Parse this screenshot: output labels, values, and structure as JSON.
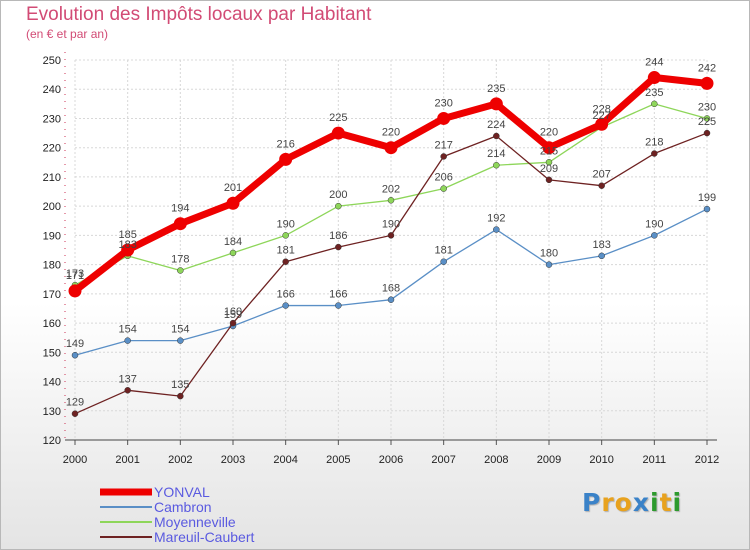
{
  "title": "Evolution des Impôts locaux par Habitant",
  "subtitle": "(en € et par an)",
  "logo": {
    "letters": [
      "P",
      "r",
      "o",
      "x",
      "i",
      "t",
      "i"
    ],
    "colors": [
      "#3a82c8",
      "#e8a21e",
      "#e8a21e",
      "#3a82c8",
      "#2d9a2d",
      "#e8a21e",
      "#2d9a2d"
    ]
  },
  "chart_data": {
    "type": "line",
    "title": "Evolution des Impôts locaux par Habitant",
    "subtitle": "(en € et par an)",
    "xlabel": "",
    "ylabel": "",
    "categories": [
      "2000",
      "2001",
      "2002",
      "2003",
      "2004",
      "2005",
      "2006",
      "2007",
      "2008",
      "2009",
      "2010",
      "2011",
      "2012"
    ],
    "ylim": [
      120,
      250
    ],
    "yticks": [
      120,
      130,
      140,
      150,
      160,
      170,
      180,
      190,
      200,
      210,
      220,
      230,
      240,
      250
    ],
    "grid": true,
    "legend_position": "bottom-left",
    "series": [
      {
        "name": "YONVAL",
        "color": "#ee0000",
        "emphasis": true,
        "values": [
          171,
          185,
          194,
          201,
          216,
          225,
          220,
          230,
          235,
          220,
          228,
          244,
          242
        ],
        "labels": [
          "171",
          "185",
          "194",
          "201",
          "216",
          "225",
          "220",
          "230",
          "235",
          "220",
          "228",
          "244",
          "242"
        ]
      },
      {
        "name": "Cambron",
        "color": "#5a8fc6",
        "emphasis": false,
        "values": [
          149,
          154,
          154,
          159,
          166,
          166,
          168,
          181,
          192,
          180,
          183,
          190,
          199
        ],
        "labels": [
          "149",
          "154",
          "154",
          "159",
          "166",
          "166",
          "168",
          "181",
          "192",
          "180",
          "183",
          "190",
          "199"
        ]
      },
      {
        "name": "Moyenneville",
        "color": "#8ed65a",
        "emphasis": false,
        "values": [
          173,
          183,
          178,
          184,
          190,
          200,
          202,
          206,
          214,
          215,
          227,
          235,
          230
        ],
        "labels": [
          "173",
          "183",
          "178",
          "184",
          "190",
          "200",
          "202",
          "206",
          "214",
          "215",
          "227",
          "235",
          "230"
        ]
      },
      {
        "name": "Mareuil-Caubert",
        "color": "#6e2222",
        "emphasis": false,
        "values": [
          129,
          137,
          135,
          160,
          181,
          186,
          190,
          217,
          224,
          209,
          207,
          218,
          225
        ],
        "labels": [
          "129",
          "137",
          "135",
          "160",
          "181",
          "186",
          "190",
          "217",
          "224",
          "209",
          "207",
          "218",
          "225"
        ]
      }
    ]
  }
}
